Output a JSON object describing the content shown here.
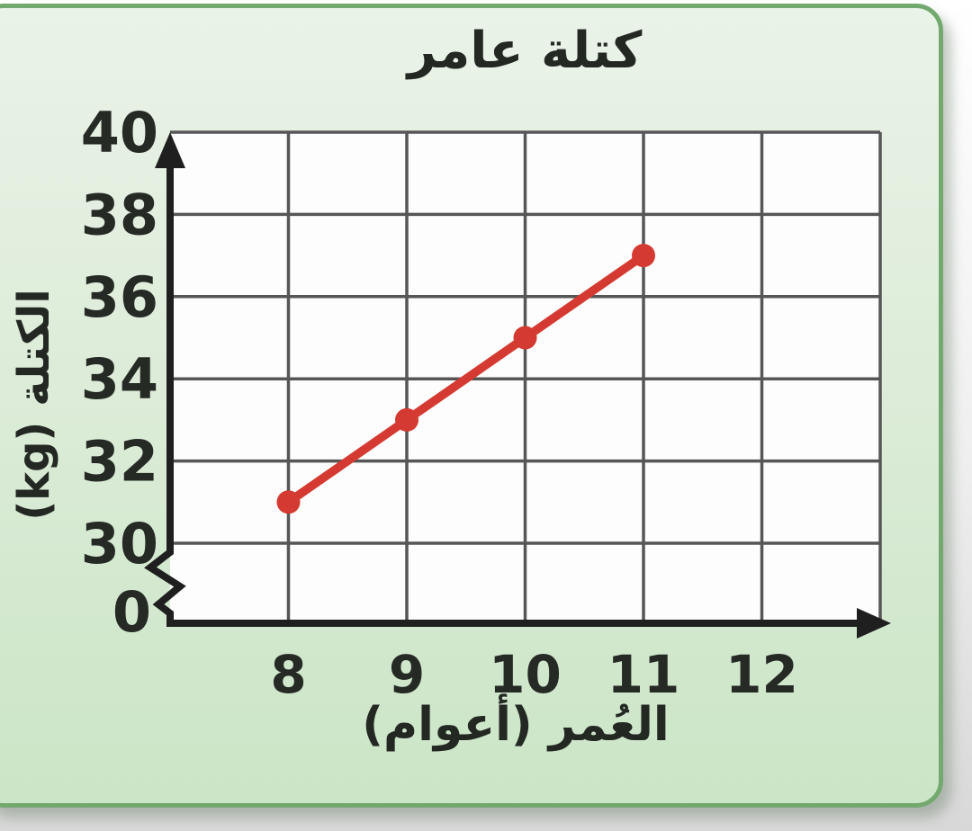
{
  "card": {
    "background_top": "#eaf3e8",
    "background_bottom": "#cbe5c6",
    "border_color": "#73a96e"
  },
  "chart_data": {
    "type": "line",
    "title": "كتلة عامر",
    "xlabel": "العُمر (أعوام)",
    "ylabel": "الكتلة (kg)",
    "x": [
      8,
      9,
      10,
      11
    ],
    "y": [
      31,
      33,
      35,
      37
    ],
    "x_ticks": [
      8,
      9,
      10,
      11,
      12
    ],
    "y_ticks": [
      0,
      30,
      32,
      34,
      36,
      38,
      40
    ],
    "y_axis_break": true,
    "axis_break_between": [
      0,
      30
    ],
    "xlim": [
      8,
      13
    ],
    "ylim": [
      30,
      40
    ],
    "grid": true,
    "legend": "none",
    "line_color": "#d43a31",
    "marker": "circle",
    "axis_color": "#1f1f1f",
    "grid_color": "#565656",
    "text_color": "#252a25"
  }
}
